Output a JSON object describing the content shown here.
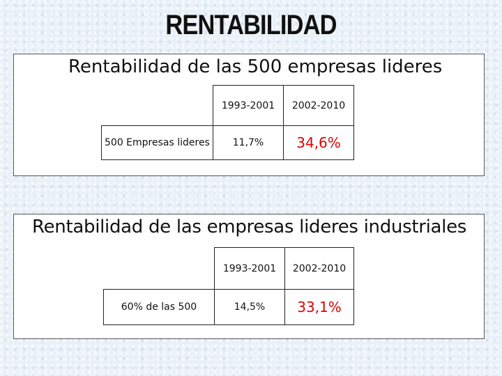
{
  "title": "RENTABILIDAD",
  "section1": {
    "heading": "Rentabilidad de las 500 empresas lideres",
    "col1": "1993-2001",
    "col2": "2002-2010",
    "row_label": "500 Empresas lideres",
    "val1": "11,7%",
    "val2": "34,6%"
  },
  "section2": {
    "heading": "Rentabilidad de las empresas lideres industriales",
    "col1": "1993-2001",
    "col2": "2002-2010",
    "row_label": "60% de las 500",
    "val1": "14,5%",
    "val2": "33,1%"
  },
  "colors": {
    "highlight": "#e00000",
    "background": "#e9f0f8"
  }
}
